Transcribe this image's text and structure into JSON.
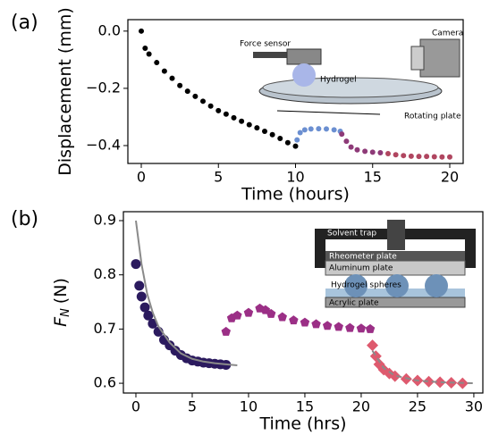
{
  "chart_data": [
    {
      "type": "scatter",
      "panel_label": "(a)",
      "xlabel": "Time (hours)",
      "ylabel": "Displacement (mm)",
      "xlim": [
        -0.87,
        20.87
      ],
      "ylim": [
        -0.4625,
        0.04
      ],
      "xticks": [
        0,
        5,
        10,
        15,
        20
      ],
      "yticks": [
        {
          "value": 0,
          "label": "0.0"
        },
        {
          "value": -0.2,
          "label": "−0.2"
        },
        {
          "value": -0.4,
          "label": "−0.4"
        }
      ],
      "annotations": [
        "Force sensor",
        "Hydrogel",
        "Camera",
        "Rotating plate"
      ],
      "series": [
        {
          "color": "#000000",
          "marker": "circle",
          "x": [
            0,
            0.25,
            0.5,
            1,
            1.5,
            2,
            2.5,
            3,
            3.5,
            4,
            4.5,
            5,
            5.5,
            6,
            6.5,
            7,
            7.5,
            8,
            8.5,
            9,
            9.5,
            10
          ],
          "values": [
            0,
            -0.06,
            -0.08,
            -0.11,
            -0.14,
            -0.165,
            -0.19,
            -0.21,
            -0.228,
            -0.245,
            -0.262,
            -0.278,
            -0.29,
            -0.303,
            -0.315,
            -0.327,
            -0.338,
            -0.35,
            -0.362,
            -0.375,
            -0.39,
            -0.402
          ]
        },
        {
          "color": "#6b8fd1",
          "marker": "circle",
          "x": [
            10.1,
            10.3,
            10.6,
            11,
            11.5,
            12,
            12.5,
            12.9
          ],
          "values": [
            -0.38,
            -0.355,
            -0.345,
            -0.342,
            -0.341,
            -0.342,
            -0.345,
            -0.35
          ]
        },
        {
          "color": "#8e3a78",
          "marker": "circle",
          "x": [
            13,
            13.3,
            13.6,
            14,
            14.5,
            15,
            15.5
          ],
          "values": [
            -0.36,
            -0.385,
            -0.405,
            -0.415,
            -0.42,
            -0.423,
            -0.425
          ]
        },
        {
          "color": "#b04660",
          "marker": "circle",
          "x": [
            16,
            16.5,
            17,
            17.5,
            18,
            18.5,
            19,
            19.5,
            20
          ],
          "values": [
            -0.428,
            -0.432,
            -0.435,
            -0.437,
            -0.438,
            -0.438,
            -0.439,
            -0.44,
            -0.44
          ]
        }
      ]
    },
    {
      "type": "scatter",
      "panel_label": "(b)",
      "xlabel": "Time (hrs)",
      "ylabel": "F",
      "ylabel_subscript": "N",
      "ylabel_unit": "(N)",
      "xlim": [
        -1.11,
        30.8
      ],
      "ylim": [
        0.582,
        0.9165
      ],
      "xticks": [
        0,
        5,
        10,
        15,
        20,
        25,
        30
      ],
      "yticks": [
        0.6,
        0.7,
        0.8,
        0.9
      ],
      "annotations": [
        "Solvent trap",
        "Rheometer plate",
        "Aluminum plate",
        "Hydrogel spheres",
        "Acrylic plate"
      ],
      "series": [
        {
          "color": "#2b1a5e",
          "marker": "circle",
          "x": [
            0,
            0.3,
            0.5,
            0.8,
            1.1,
            1.5,
            2,
            2.5,
            3,
            3.5,
            4,
            4.5,
            5,
            5.5,
            6,
            6.5,
            7,
            7.5,
            8
          ],
          "values": [
            0.82,
            0.78,
            0.76,
            0.74,
            0.725,
            0.71,
            0.695,
            0.68,
            0.67,
            0.66,
            0.652,
            0.646,
            0.642,
            0.64,
            0.638,
            0.637,
            0.636,
            0.635,
            0.634
          ]
        },
        {
          "color": "#8a8a8a",
          "marker": "line",
          "x": [
            0,
            0.5,
            1,
            1.5,
            2,
            3,
            4,
            5,
            6,
            7,
            8,
            9
          ],
          "values": [
            0.9,
            0.82,
            0.765,
            0.73,
            0.705,
            0.675,
            0.655,
            0.645,
            0.64,
            0.637,
            0.635,
            0.633
          ]
        },
        {
          "color": "#9b2f86",
          "marker": "pentagon",
          "x": [
            8,
            8.5,
            9,
            10,
            11,
            11.5,
            12,
            13,
            14,
            15,
            16,
            17,
            18,
            19,
            20,
            20.8
          ],
          "values": [
            0.695,
            0.72,
            0.725,
            0.73,
            0.738,
            0.735,
            0.728,
            0.722,
            0.716,
            0.712,
            0.709,
            0.706,
            0.704,
            0.702,
            0.701,
            0.7
          ]
        },
        {
          "color": "#de5a6e",
          "marker": "diamond",
          "x": [
            21,
            21.3,
            21.6,
            22,
            22.5,
            23,
            24,
            25,
            26,
            27,
            28,
            29
          ],
          "values": [
            0.67,
            0.65,
            0.635,
            0.625,
            0.618,
            0.613,
            0.608,
            0.605,
            0.603,
            0.602,
            0.601,
            0.6
          ]
        },
        {
          "color": "#8a8a8a",
          "marker": "dashed",
          "x": [
            21,
            22,
            23,
            25,
            27,
            30
          ],
          "values": [
            0.66,
            0.628,
            0.614,
            0.605,
            0.602,
            0.6
          ]
        }
      ]
    }
  ]
}
